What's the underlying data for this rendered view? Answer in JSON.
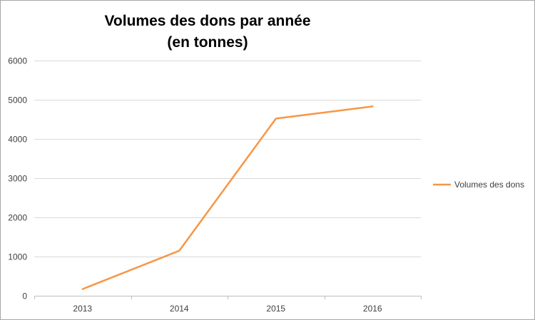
{
  "chart_data": {
    "type": "line",
    "title_line1": "Volumes des dons par année",
    "title_line2": "(en tonnes)",
    "xlabel": "",
    "ylabel": "",
    "categories": [
      "2013",
      "2014",
      "2015",
      "2016"
    ],
    "series": [
      {
        "name": "Volumes des dons",
        "values": [
          170,
          1150,
          4520,
          4830
        ],
        "color": "#f79646"
      }
    ],
    "ylim": [
      0,
      6000
    ],
    "yticks": [
      0,
      1000,
      2000,
      3000,
      4000,
      5000,
      6000
    ],
    "grid": "horizontal",
    "legend_position": "right"
  }
}
